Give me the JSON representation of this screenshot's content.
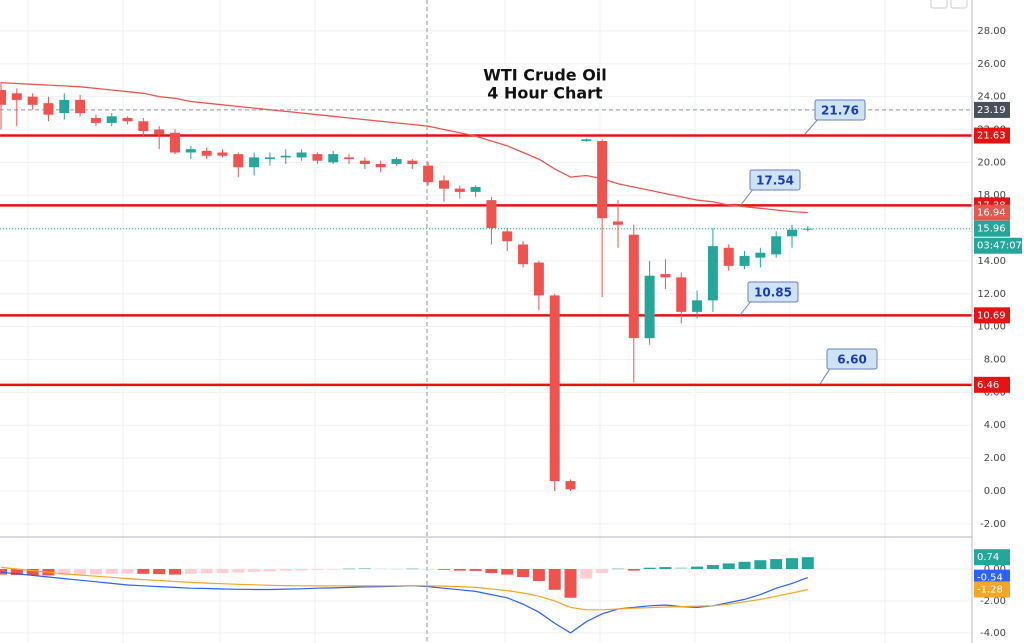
{
  "chart_data": {
    "type": "candlestick",
    "title": "WTI Crude Oil",
    "subtitle": "4 Hour Chart",
    "up_color": "#26a69a",
    "down_color": "#ef5350",
    "open": [
      24.4,
      24.2,
      24.0,
      23.6,
      23.0,
      23.8,
      22.7,
      22.4,
      22.7,
      22.5,
      22.0,
      21.8,
      20.6,
      20.7,
      20.6,
      20.5,
      19.7,
      20.2,
      20.3,
      20.3,
      20.5,
      20.0,
      20.3,
      20.1,
      19.9,
      19.9,
      20.1,
      19.8,
      18.9,
      18.4,
      18.2,
      17.7,
      15.8,
      15.0,
      13.9,
      11.9,
      0.6,
      21.3,
      21.3,
      16.4,
      15.6,
      9.3,
      13.2,
      13.0,
      10.9,
      11.6,
      14.8,
      13.7,
      14.2,
      14.4,
      15.5,
      15.9
    ],
    "high": [
      24.9,
      24.5,
      24.2,
      24.0,
      24.2,
      24.1,
      22.9,
      23.0,
      22.8,
      22.7,
      22.2,
      22.0,
      21.0,
      20.9,
      20.8,
      20.6,
      20.6,
      20.6,
      20.8,
      20.8,
      20.6,
      20.7,
      20.5,
      20.3,
      20.1,
      20.3,
      20.2,
      20.0,
      19.2,
      18.6,
      18.6,
      17.9,
      16.0,
      15.2,
      14.0,
      12.0,
      0.7,
      21.45,
      21.4,
      17.7,
      16.2,
      14.0,
      14.1,
      13.3,
      12.2,
      16.0,
      15.0,
      14.6,
      14.8,
      15.8,
      16.2,
      16.1
    ],
    "low": [
      22.0,
      22.2,
      23.2,
      22.5,
      22.6,
      22.8,
      22.2,
      22.2,
      22.3,
      21.6,
      20.8,
      20.5,
      20.2,
      20.2,
      20.3,
      19.1,
      19.2,
      19.8,
      19.9,
      20.1,
      19.9,
      19.9,
      19.9,
      19.6,
      19.4,
      19.8,
      19.6,
      18.6,
      17.6,
      17.8,
      17.9,
      15.0,
      14.6,
      13.6,
      11.0,
      0.0,
      0.0,
      21.25,
      11.8,
      14.8,
      6.6,
      8.9,
      12.3,
      10.2,
      10.5,
      10.9,
      13.4,
      13.5,
      13.6,
      14.2,
      14.8,
      15.8
    ],
    "close": [
      23.5,
      23.8,
      23.5,
      22.9,
      23.8,
      23.0,
      22.4,
      22.8,
      22.5,
      21.9,
      21.7,
      20.6,
      20.8,
      20.4,
      20.4,
      19.7,
      20.3,
      20.3,
      20.4,
      20.6,
      20.1,
      20.5,
      20.2,
      19.9,
      19.7,
      20.2,
      19.9,
      18.8,
      18.4,
      18.2,
      18.5,
      16.0,
      15.2,
      13.8,
      11.9,
      0.6,
      0.1,
      21.4,
      16.6,
      16.2,
      9.3,
      13.1,
      13.0,
      10.9,
      11.6,
      14.9,
      13.7,
      14.3,
      14.5,
      15.5,
      15.9,
      15.96
    ],
    "ma": {
      "color": "#e8574f",
      "values": [
        24.85,
        24.8,
        24.75,
        24.7,
        24.65,
        24.6,
        24.5,
        24.4,
        24.3,
        24.2,
        24.0,
        23.9,
        23.7,
        23.6,
        23.5,
        23.4,
        23.3,
        23.2,
        23.1,
        23.0,
        22.9,
        22.8,
        22.7,
        22.6,
        22.5,
        22.4,
        22.3,
        22.2,
        22.0,
        21.8,
        21.6,
        21.3,
        21.0,
        20.6,
        20.2,
        19.6,
        19.1,
        19.2,
        19.0,
        18.7,
        18.5,
        18.3,
        18.1,
        17.9,
        17.7,
        17.6,
        17.4,
        17.3,
        17.2,
        17.1,
        17.0,
        16.94
      ]
    },
    "ylim": [
      -2.68,
      29.88
    ],
    "yticks": [
      {
        "value": -2,
        "label": "-2.00"
      },
      {
        "value": 0,
        "label": "0.00"
      },
      {
        "value": 2,
        "label": "2.00"
      },
      {
        "value": 4,
        "label": "4.00"
      },
      {
        "value": 6,
        "label": "6.00"
      },
      {
        "value": 8,
        "label": "8.00"
      },
      {
        "value": 10,
        "label": "10.00"
      },
      {
        "value": 12,
        "label": "12.00"
      },
      {
        "value": 14,
        "label": "14.00"
      },
      {
        "value": 16,
        "label": "16.00"
      },
      {
        "value": 18,
        "label": "18.00"
      },
      {
        "value": 20,
        "label": "20.00"
      },
      {
        "value": 22,
        "label": "22.00"
      },
      {
        "value": 24,
        "label": "24.00"
      },
      {
        "value": 26,
        "label": "26.00"
      },
      {
        "value": 28,
        "label": "28.00"
      }
    ],
    "levels": [
      21.63,
      17.38,
      10.69,
      6.46
    ],
    "level_color": "#e31414",
    "annotations": [
      21.76,
      17.54,
      10.85,
      {
        "value": 6.6,
        "label": "6.60"
      }
    ],
    "crosshair_price": 23.19,
    "countdown": "03:47:07",
    "macd": {
      "hist": [
        -0.35,
        -0.38,
        -0.4,
        -0.4,
        -0.38,
        -0.35,
        -0.33,
        -0.3,
        -0.28,
        -0.3,
        -0.32,
        -0.35,
        -0.3,
        -0.27,
        -0.25,
        -0.22,
        -0.18,
        -0.15,
        -0.1,
        -0.08,
        -0.05,
        -0.04,
        0.02,
        0.03,
        0.02,
        0.01,
        0.02,
        0.0,
        -0.05,
        -0.1,
        -0.12,
        -0.25,
        -0.35,
        -0.5,
        -0.75,
        -1.3,
        -1.8,
        -0.6,
        -0.25,
        0.02,
        -0.1,
        0.08,
        0.12,
        0.1,
        0.15,
        0.25,
        0.35,
        0.45,
        0.55,
        0.62,
        0.68,
        0.74
      ],
      "line": {
        "color": "#2962ff",
        "values": [
          -0.2,
          -0.3,
          -0.4,
          -0.5,
          -0.6,
          -0.7,
          -0.8,
          -0.9,
          -1.0,
          -1.05,
          -1.1,
          -1.15,
          -1.2,
          -1.22,
          -1.25,
          -1.27,
          -1.28,
          -1.28,
          -1.26,
          -1.24,
          -1.2,
          -1.18,
          -1.15,
          -1.12,
          -1.1,
          -1.08,
          -1.05,
          -1.1,
          -1.2,
          -1.3,
          -1.4,
          -1.6,
          -1.8,
          -2.2,
          -2.7,
          -3.4,
          -4.0,
          -3.3,
          -2.8,
          -2.5,
          -2.4,
          -2.3,
          -2.25,
          -2.35,
          -2.4,
          -2.3,
          -2.1,
          -1.9,
          -1.6,
          -1.2,
          -0.9,
          -0.54
        ]
      },
      "signal": {
        "color": "#f5a623",
        "values": [
          0.1,
          0.0,
          -0.1,
          -0.2,
          -0.3,
          -0.38,
          -0.45,
          -0.52,
          -0.6,
          -0.66,
          -0.72,
          -0.78,
          -0.84,
          -0.88,
          -0.92,
          -0.96,
          -0.99,
          -1.02,
          -1.04,
          -1.05,
          -1.06,
          -1.06,
          -1.06,
          -1.05,
          -1.05,
          -1.05,
          -1.04,
          -1.05,
          -1.07,
          -1.1,
          -1.15,
          -1.25,
          -1.35,
          -1.5,
          -1.7,
          -2.0,
          -2.4,
          -2.55,
          -2.55,
          -2.5,
          -2.45,
          -2.42,
          -2.38,
          -2.35,
          -2.32,
          -2.3,
          -2.2,
          -2.05,
          -1.9,
          -1.7,
          -1.5,
          -1.28
        ]
      },
      "ylim": [
        -4.63,
        1.94
      ],
      "yticks": [
        {
          "value": 0,
          "label": "0.00"
        },
        {
          "value": -2,
          "label": "-2.00"
        },
        {
          "value": -4,
          "label": "-4.00"
        }
      ]
    }
  }
}
